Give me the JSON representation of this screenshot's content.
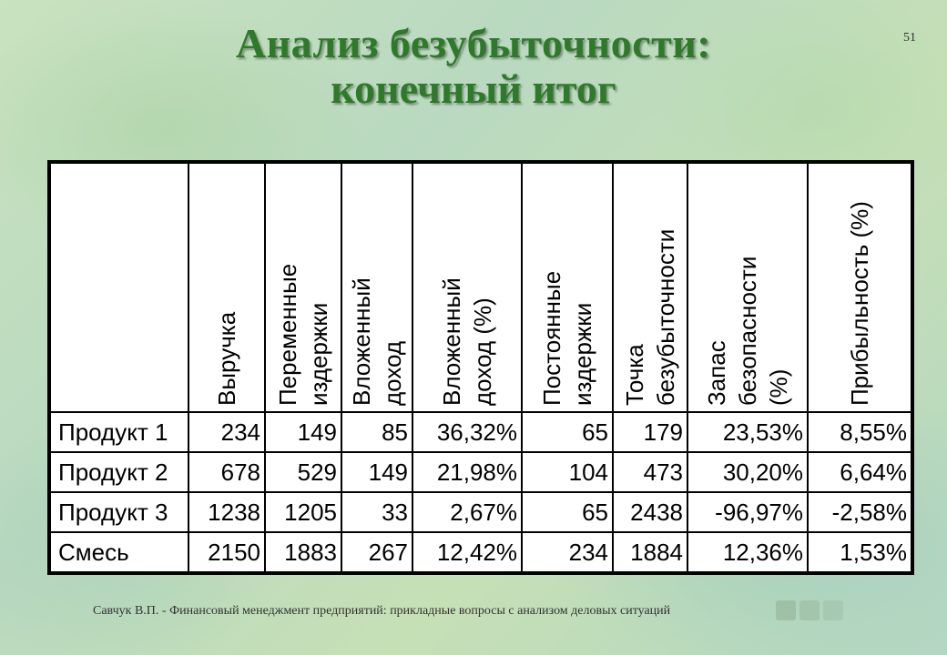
{
  "slide": {
    "title_line1": "Анализ безубыточности:",
    "title_line2": "конечный итог",
    "page_number": "51",
    "footer": "Савчук В.П. - Финансовый менеджмент предприятий: прикладные вопросы с анализом деловых ситуаций"
  },
  "table": {
    "headers": [
      [
        "Выручка"
      ],
      [
        "Переменные",
        "издержки"
      ],
      [
        "Вложенный",
        "доход"
      ],
      [
        "Вложенный",
        "доход (%)"
      ],
      [
        "Постоянные",
        "издержки"
      ],
      [
        "Точка",
        "безубыточности"
      ],
      [
        "Запас",
        "безопасности",
        "(%)"
      ],
      [
        "Прибыльность (%)"
      ]
    ],
    "rows": [
      {
        "name": "Продукт 1",
        "values": [
          "234",
          "149",
          "85",
          "36,32%",
          "65",
          "179",
          "23,53%",
          "8,55%"
        ]
      },
      {
        "name": "Продукт 2",
        "values": [
          "678",
          "529",
          "149",
          "21,98%",
          "104",
          "473",
          "30,20%",
          "6,64%"
        ]
      },
      {
        "name": "Продукт 3",
        "values": [
          "1238",
          "1205",
          "33",
          "2,67%",
          "65",
          "2438",
          "-96,97%",
          "-2,58%"
        ]
      },
      {
        "name": "Смесь",
        "values": [
          "2150",
          "1883",
          "267",
          "12,42%",
          "234",
          "1884",
          "12,36%",
          "1,53%"
        ]
      }
    ]
  },
  "colors": {
    "title": "#2f7a2a",
    "table_background": "#ffffff",
    "border": "#000000"
  },
  "icons": {
    "footer_logo": "faded-logo-icon"
  }
}
